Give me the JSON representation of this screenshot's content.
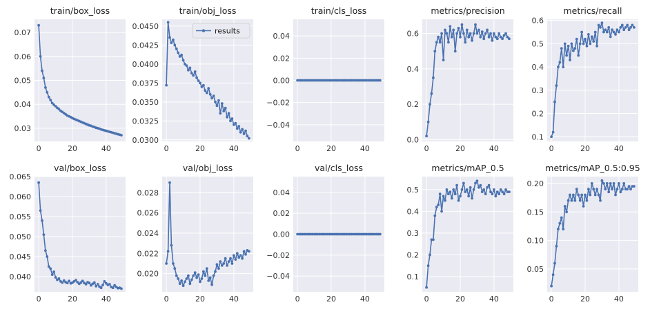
{
  "legend": {
    "label": "results"
  },
  "chart_data": [
    {
      "type": "line",
      "title": "train/box_loss",
      "x": [
        0,
        1,
        2,
        3,
        4,
        5,
        6,
        7,
        8,
        9,
        10,
        11,
        12,
        13,
        14,
        15,
        16,
        17,
        18,
        19,
        20,
        21,
        22,
        23,
        24,
        25,
        26,
        27,
        28,
        29,
        30,
        31,
        32,
        33,
        34,
        35,
        36,
        37,
        38,
        39,
        40,
        41,
        42,
        43,
        44,
        45,
        46,
        47,
        48,
        49
      ],
      "y": [
        0.073,
        0.06,
        0.054,
        0.051,
        0.047,
        0.045,
        0.043,
        0.0418,
        0.0405,
        0.0398,
        0.0392,
        0.0385,
        0.038,
        0.0373,
        0.0368,
        0.0363,
        0.0358,
        0.0353,
        0.035,
        0.0346,
        0.0342,
        0.0339,
        0.0336,
        0.0333,
        0.033,
        0.0327,
        0.0324,
        0.0321,
        0.0318,
        0.0315,
        0.0312,
        0.031,
        0.0307,
        0.0305,
        0.0302,
        0.03,
        0.0298,
        0.0295,
        0.0293,
        0.0291,
        0.0289,
        0.0287,
        0.0285,
        0.0283,
        0.0281,
        0.0279,
        0.0277,
        0.0275,
        0.0273,
        0.0271
      ],
      "xlim": [
        -2.5,
        51.5
      ],
      "ylim": [
        0.0245,
        0.0755
      ],
      "xticks": [
        0,
        20,
        40
      ],
      "xtick_labels": [
        "0",
        "20",
        "40"
      ],
      "yticks": [
        0.03,
        0.04,
        0.05,
        0.06,
        0.07
      ],
      "ytick_labels": [
        "0.03",
        "0.04",
        "0.05",
        "0.06",
        "0.07"
      ],
      "grid": true
    },
    {
      "type": "line",
      "title": "train/obj_loss",
      "x": [
        0,
        1,
        2,
        3,
        4,
        5,
        6,
        7,
        8,
        9,
        10,
        11,
        12,
        13,
        14,
        15,
        16,
        17,
        18,
        19,
        20,
        21,
        22,
        23,
        24,
        25,
        26,
        27,
        28,
        29,
        30,
        31,
        32,
        33,
        34,
        35,
        36,
        37,
        38,
        39,
        40,
        41,
        42,
        43,
        44,
        45,
        46,
        47,
        48,
        49
      ],
      "y": [
        0.0372,
        0.0455,
        0.0435,
        0.0428,
        0.0432,
        0.0425,
        0.042,
        0.0415,
        0.041,
        0.0412,
        0.0405,
        0.04,
        0.0398,
        0.0392,
        0.0395,
        0.0388,
        0.0385,
        0.039,
        0.0382,
        0.0378,
        0.0375,
        0.037,
        0.0372,
        0.0365,
        0.0362,
        0.0368,
        0.036,
        0.0355,
        0.0358,
        0.035,
        0.0345,
        0.0352,
        0.0335,
        0.0348,
        0.0338,
        0.0342,
        0.033,
        0.0335,
        0.0325,
        0.0328,
        0.032,
        0.0322,
        0.0315,
        0.0318,
        0.031,
        0.0314,
        0.0308,
        0.0312,
        0.0305,
        0.0302
      ],
      "xlim": [
        -2.5,
        51.5
      ],
      "ylim": [
        0.0298,
        0.0459
      ],
      "xticks": [
        0,
        20,
        40
      ],
      "xtick_labels": [
        "0",
        "20",
        "40"
      ],
      "yticks": [
        0.03,
        0.0325,
        0.035,
        0.0375,
        0.04,
        0.0425,
        0.045
      ],
      "ytick_labels": [
        "0.0300",
        "0.0325",
        "0.0350",
        "0.0375",
        "0.0400",
        "0.0425",
        "0.0450"
      ],
      "grid": true,
      "legend": "top-right"
    },
    {
      "type": "line",
      "title": "train/cls_loss",
      "x": [
        0,
        1,
        2,
        3,
        4,
        5,
        6,
        7,
        8,
        9,
        10,
        11,
        12,
        13,
        14,
        15,
        16,
        17,
        18,
        19,
        20,
        21,
        22,
        23,
        24,
        25,
        26,
        27,
        28,
        29,
        30,
        31,
        32,
        33,
        34,
        35,
        36,
        37,
        38,
        39,
        40,
        41,
        42,
        43,
        44,
        45,
        46,
        47,
        48,
        49
      ],
      "y": [
        0,
        0,
        0,
        0,
        0,
        0,
        0,
        0,
        0,
        0,
        0,
        0,
        0,
        0,
        0,
        0,
        0,
        0,
        0,
        0,
        0,
        0,
        0,
        0,
        0,
        0,
        0,
        0,
        0,
        0,
        0,
        0,
        0,
        0,
        0,
        0,
        0,
        0,
        0,
        0,
        0,
        0,
        0,
        0,
        0,
        0,
        0,
        0,
        0,
        0
      ],
      "xlim": [
        -2.5,
        51.5
      ],
      "ylim": [
        -0.055,
        0.055
      ],
      "xticks": [
        0,
        20,
        40
      ],
      "xtick_labels": [
        "0",
        "20",
        "40"
      ],
      "yticks": [
        -0.04,
        -0.02,
        0,
        0.02,
        0.04
      ],
      "ytick_labels": [
        "−0.04",
        "−0.02",
        "0.00",
        "0.02",
        "0.04"
      ],
      "grid": true
    },
    {
      "type": "line",
      "title": "metrics/precision",
      "x": [
        0,
        1,
        2,
        3,
        4,
        5,
        6,
        7,
        8,
        9,
        10,
        11,
        12,
        13,
        14,
        15,
        16,
        17,
        18,
        19,
        20,
        21,
        22,
        23,
        24,
        25,
        26,
        27,
        28,
        29,
        30,
        31,
        32,
        33,
        34,
        35,
        36,
        37,
        38,
        39,
        40,
        41,
        42,
        43,
        44,
        45,
        46,
        47,
        48,
        49
      ],
      "y": [
        0.02,
        0.1,
        0.2,
        0.26,
        0.35,
        0.5,
        0.55,
        0.58,
        0.55,
        0.6,
        0.45,
        0.62,
        0.6,
        0.55,
        0.64,
        0.58,
        0.62,
        0.5,
        0.6,
        0.63,
        0.58,
        0.65,
        0.6,
        0.55,
        0.62,
        0.58,
        0.6,
        0.56,
        0.6,
        0.65,
        0.6,
        0.62,
        0.58,
        0.61,
        0.57,
        0.6,
        0.62,
        0.58,
        0.6,
        0.56,
        0.6,
        0.58,
        0.57,
        0.6,
        0.58,
        0.57,
        0.59,
        0.6,
        0.58,
        0.57
      ],
      "xlim": [
        -2.5,
        51.5
      ],
      "ylim": [
        -0.01,
        0.68
      ],
      "xticks": [
        0,
        20,
        40
      ],
      "xtick_labels": [
        "0",
        "20",
        "40"
      ],
      "yticks": [
        0,
        0.2,
        0.4,
        0.6
      ],
      "ytick_labels": [
        "0.0",
        "0.2",
        "0.4",
        "0.6"
      ],
      "grid": true
    },
    {
      "type": "line",
      "title": "metrics/recall",
      "x": [
        0,
        1,
        2,
        3,
        4,
        5,
        6,
        7,
        8,
        9,
        10,
        11,
        12,
        13,
        14,
        15,
        16,
        17,
        18,
        19,
        20,
        21,
        22,
        23,
        24,
        25,
        26,
        27,
        28,
        29,
        30,
        31,
        32,
        33,
        34,
        35,
        36,
        37,
        38,
        39,
        40,
        41,
        42,
        43,
        44,
        45,
        46,
        47,
        48,
        49
      ],
      "y": [
        0.1,
        0.12,
        0.25,
        0.32,
        0.4,
        0.42,
        0.48,
        0.4,
        0.5,
        0.45,
        0.49,
        0.43,
        0.5,
        0.47,
        0.48,
        0.52,
        0.45,
        0.5,
        0.55,
        0.5,
        0.52,
        0.49,
        0.54,
        0.5,
        0.53,
        0.51,
        0.55,
        0.49,
        0.58,
        0.57,
        0.59,
        0.55,
        0.56,
        0.55,
        0.57,
        0.53,
        0.56,
        0.55,
        0.54,
        0.56,
        0.55,
        0.57,
        0.58,
        0.56,
        0.57,
        0.58,
        0.56,
        0.57,
        0.58,
        0.57
      ],
      "xlim": [
        -2.5,
        51.5
      ],
      "ylim": [
        0.08,
        0.605
      ],
      "xticks": [
        0,
        20,
        40
      ],
      "xtick_labels": [
        "0",
        "20",
        "40"
      ],
      "yticks": [
        0.1,
        0.2,
        0.3,
        0.4,
        0.5,
        0.6
      ],
      "ytick_labels": [
        "0.1",
        "0.2",
        "0.3",
        "0.4",
        "0.5",
        "0.6"
      ],
      "grid": true
    },
    {
      "type": "line",
      "title": "val/box_loss",
      "x": [
        0,
        1,
        2,
        3,
        4,
        5,
        6,
        7,
        8,
        9,
        10,
        11,
        12,
        13,
        14,
        15,
        16,
        17,
        18,
        19,
        20,
        21,
        22,
        23,
        24,
        25,
        26,
        27,
        28,
        29,
        30,
        31,
        32,
        33,
        34,
        35,
        36,
        37,
        38,
        39,
        40,
        41,
        42,
        43,
        44,
        45,
        46,
        47,
        48,
        49
      ],
      "y": [
        0.0635,
        0.0565,
        0.054,
        0.0505,
        0.0465,
        0.045,
        0.0425,
        0.042,
        0.0405,
        0.0412,
        0.0398,
        0.0392,
        0.0395,
        0.0388,
        0.0385,
        0.039,
        0.0386,
        0.0384,
        0.0389,
        0.0383,
        0.0385,
        0.0388,
        0.0391,
        0.0386,
        0.0382,
        0.0385,
        0.0389,
        0.0384,
        0.0381,
        0.0386,
        0.0384,
        0.0378,
        0.0382,
        0.0385,
        0.0376,
        0.0381,
        0.0375,
        0.0372,
        0.0379,
        0.0388,
        0.0383,
        0.0379,
        0.0381,
        0.0374,
        0.0372,
        0.0378,
        0.0374,
        0.0371,
        0.0372,
        0.037
      ],
      "xlim": [
        -2.5,
        51.5
      ],
      "ylim": [
        0.0362,
        0.065
      ],
      "xticks": [
        0,
        20,
        40
      ],
      "xtick_labels": [
        "0",
        "20",
        "40"
      ],
      "yticks": [
        0.04,
        0.045,
        0.05,
        0.055,
        0.06,
        0.065
      ],
      "ytick_labels": [
        "0.040",
        "0.045",
        "0.050",
        "0.055",
        "0.060",
        "0.065"
      ],
      "grid": true
    },
    {
      "type": "line",
      "title": "val/obj_loss",
      "x": [
        0,
        1,
        2,
        3,
        4,
        5,
        6,
        7,
        8,
        9,
        10,
        11,
        12,
        13,
        14,
        15,
        16,
        17,
        18,
        19,
        20,
        21,
        22,
        23,
        24,
        25,
        26,
        27,
        28,
        29,
        30,
        31,
        32,
        33,
        34,
        35,
        36,
        37,
        38,
        39,
        40,
        41,
        42,
        43,
        44,
        45,
        46,
        47,
        48,
        49
      ],
      "y": [
        0.021,
        0.0222,
        0.029,
        0.0228,
        0.021,
        0.0205,
        0.0198,
        0.0195,
        0.019,
        0.0193,
        0.0188,
        0.0192,
        0.0195,
        0.0198,
        0.019,
        0.0194,
        0.0198,
        0.0201,
        0.0196,
        0.0199,
        0.0192,
        0.0195,
        0.0202,
        0.0198,
        0.0205,
        0.0193,
        0.0196,
        0.0189,
        0.0198,
        0.0202,
        0.0209,
        0.0205,
        0.0212,
        0.0208,
        0.021,
        0.0215,
        0.0208,
        0.0212,
        0.0215,
        0.021,
        0.0218,
        0.0214,
        0.022,
        0.0216,
        0.0218,
        0.0215,
        0.0222,
        0.0219,
        0.0223,
        0.0222
      ],
      "xlim": [
        -2.5,
        51.5
      ],
      "ylim": [
        0.0182,
        0.0296
      ],
      "xticks": [
        0,
        20,
        40
      ],
      "xtick_labels": [
        "0",
        "20",
        "40"
      ],
      "yticks": [
        0.02,
        0.022,
        0.024,
        0.026,
        0.028
      ],
      "ytick_labels": [
        "0.020",
        "0.022",
        "0.024",
        "0.026",
        "0.028"
      ],
      "grid": true
    },
    {
      "type": "line",
      "title": "val/cls_loss",
      "x": [
        0,
        1,
        2,
        3,
        4,
        5,
        6,
        7,
        8,
        9,
        10,
        11,
        12,
        13,
        14,
        15,
        16,
        17,
        18,
        19,
        20,
        21,
        22,
        23,
        24,
        25,
        26,
        27,
        28,
        29,
        30,
        31,
        32,
        33,
        34,
        35,
        36,
        37,
        38,
        39,
        40,
        41,
        42,
        43,
        44,
        45,
        46,
        47,
        48,
        49
      ],
      "y": [
        0,
        0,
        0,
        0,
        0,
        0,
        0,
        0,
        0,
        0,
        0,
        0,
        0,
        0,
        0,
        0,
        0,
        0,
        0,
        0,
        0,
        0,
        0,
        0,
        0,
        0,
        0,
        0,
        0,
        0,
        0,
        0,
        0,
        0,
        0,
        0,
        0,
        0,
        0,
        0,
        0,
        0,
        0,
        0,
        0,
        0,
        0,
        0,
        0,
        0
      ],
      "xlim": [
        -2.5,
        51.5
      ],
      "ylim": [
        -0.055,
        0.055
      ],
      "xticks": [
        0,
        20,
        40
      ],
      "xtick_labels": [
        "0",
        "20",
        "40"
      ],
      "yticks": [
        -0.04,
        -0.02,
        0,
        0.02,
        0.04
      ],
      "ytick_labels": [
        "−0.04",
        "−0.02",
        "0.00",
        "0.02",
        "0.04"
      ],
      "grid": true
    },
    {
      "type": "line",
      "title": "metrics/mAP_0.5",
      "x": [
        0,
        1,
        2,
        3,
        4,
        5,
        6,
        7,
        8,
        9,
        10,
        11,
        12,
        13,
        14,
        15,
        16,
        17,
        18,
        19,
        20,
        21,
        22,
        23,
        24,
        25,
        26,
        27,
        28,
        29,
        30,
        31,
        32,
        33,
        34,
        35,
        36,
        37,
        38,
        39,
        40,
        41,
        42,
        43,
        44,
        45,
        46,
        47,
        48,
        49
      ],
      "y": [
        0.05,
        0.15,
        0.2,
        0.27,
        0.27,
        0.38,
        0.42,
        0.43,
        0.48,
        0.4,
        0.47,
        0.45,
        0.5,
        0.48,
        0.49,
        0.46,
        0.5,
        0.48,
        0.52,
        0.45,
        0.47,
        0.5,
        0.53,
        0.49,
        0.5,
        0.47,
        0.51,
        0.46,
        0.5,
        0.53,
        0.54,
        0.51,
        0.52,
        0.49,
        0.5,
        0.48,
        0.51,
        0.52,
        0.49,
        0.48,
        0.5,
        0.47,
        0.49,
        0.48,
        0.5,
        0.49,
        0.48,
        0.5,
        0.49,
        0.49
      ],
      "xlim": [
        -2.5,
        51.5
      ],
      "ylim": [
        0.03,
        0.56
      ],
      "xticks": [
        0,
        20,
        40
      ],
      "xtick_labels": [
        "0",
        "20",
        "40"
      ],
      "yticks": [
        0.1,
        0.2,
        0.3,
        0.4,
        0.5
      ],
      "ytick_labels": [
        "0.1",
        "0.2",
        "0.3",
        "0.4",
        "0.5"
      ],
      "grid": true
    },
    {
      "type": "line",
      "title": "metrics/mAP_0.5:0.95",
      "x": [
        0,
        1,
        2,
        3,
        4,
        5,
        6,
        7,
        8,
        9,
        10,
        11,
        12,
        13,
        14,
        15,
        16,
        17,
        18,
        19,
        20,
        21,
        22,
        23,
        24,
        25,
        26,
        27,
        28,
        29,
        30,
        31,
        32,
        33,
        34,
        35,
        36,
        37,
        38,
        39,
        40,
        41,
        42,
        43,
        44,
        45,
        46,
        47,
        48,
        49
      ],
      "y": [
        0.02,
        0.04,
        0.06,
        0.09,
        0.12,
        0.13,
        0.14,
        0.12,
        0.16,
        0.15,
        0.17,
        0.18,
        0.17,
        0.18,
        0.17,
        0.19,
        0.18,
        0.17,
        0.18,
        0.16,
        0.18,
        0.17,
        0.19,
        0.18,
        0.2,
        0.19,
        0.18,
        0.19,
        0.18,
        0.17,
        0.205,
        0.2,
        0.19,
        0.2,
        0.185,
        0.2,
        0.19,
        0.2,
        0.18,
        0.19,
        0.2,
        0.185,
        0.19,
        0.2,
        0.19,
        0.19,
        0.195,
        0.19,
        0.195,
        0.195
      ],
      "xlim": [
        -2.5,
        51.5
      ],
      "ylim": [
        0.01,
        0.212
      ],
      "xticks": [
        0,
        20,
        40
      ],
      "xtick_labels": [
        "0",
        "20",
        "40"
      ],
      "yticks": [
        0.05,
        0.1,
        0.15,
        0.2
      ],
      "ytick_labels": [
        "0.05",
        "0.10",
        "0.15",
        "0.20"
      ],
      "grid": true
    }
  ]
}
